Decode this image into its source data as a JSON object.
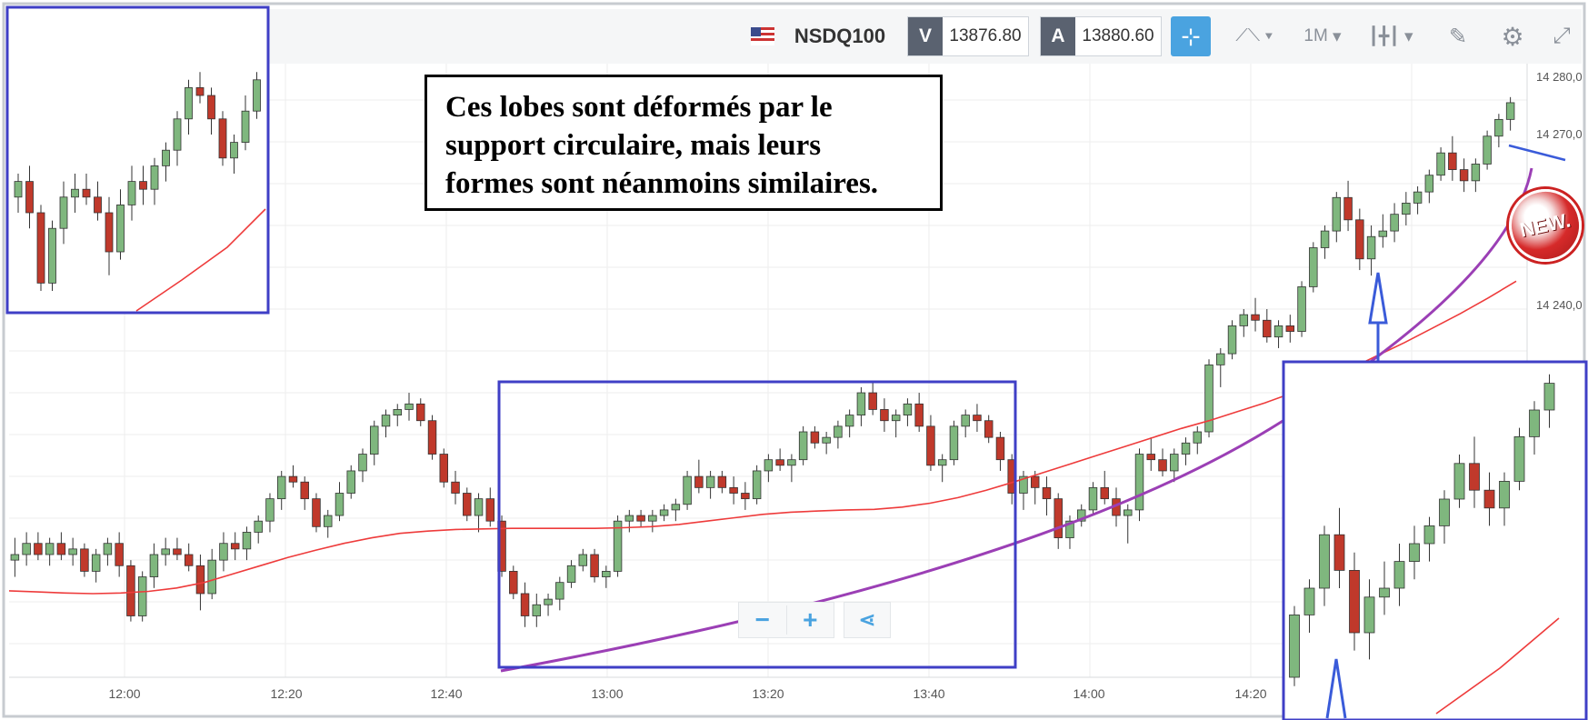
{
  "toolbar": {
    "symbol": "NSDQ100",
    "bid_label": "V",
    "bid_value": "13876.80",
    "ask_label": "A",
    "ask_value": "13880.60",
    "timeframe": "1M",
    "icons": [
      "crosshair-icon",
      "chart-type-icon",
      "candlestick-icon",
      "drawing-icon",
      "gear-icon",
      "fullscreen-icon"
    ]
  },
  "annotation": {
    "line1": "Ces lobes sont déformés par le",
    "line2": "support circulaire, mais leurs",
    "line3": "formes sont néanmoins similaires."
  },
  "badge_text": "NEW.",
  "zoom": {
    "minus": "−",
    "plus": "+"
  },
  "colors": {
    "bull": "#7fb77e",
    "bear": "#c0392b",
    "ma": "#ee3b3b",
    "curve": "#9b3fb5",
    "frame": "#3f3fc6",
    "accent": "#4aa3e0"
  },
  "chart_data": {
    "type": "candlestick",
    "instrument": "NSDQ100",
    "interval": "1M",
    "ylim": [
      14175,
      14285
    ],
    "yticks": [
      "14 280,0",
      "14 270,0",
      "14 240,0"
    ],
    "xticks": [
      "12:00",
      "12:20",
      "12:40",
      "13:00",
      "13:20",
      "13:40",
      "14:00",
      "14:20"
    ],
    "candles": [
      [
        14196,
        14200,
        14193,
        14197
      ],
      [
        14197,
        14201,
        14195,
        14199
      ],
      [
        14199,
        14201,
        14196,
        14197
      ],
      [
        14197,
        14200,
        14195,
        14199
      ],
      [
        14199,
        14201,
        14196,
        14197
      ],
      [
        14197,
        14200,
        14195,
        14198
      ],
      [
        14198,
        14199,
        14193,
        14194
      ],
      [
        14194,
        14198,
        14192,
        14197
      ],
      [
        14197,
        14200,
        14195,
        14199
      ],
      [
        14199,
        14201,
        14193,
        14195
      ],
      [
        14195,
        14196,
        14185,
        14186
      ],
      [
        14186,
        14194,
        14185,
        14193
      ],
      [
        14193,
        14199,
        14191,
        14197
      ],
      [
        14197,
        14200,
        14195,
        14198
      ],
      [
        14198,
        14200,
        14196,
        14197
      ],
      [
        14197,
        14199,
        14194,
        14195
      ],
      [
        14195,
        14197,
        14187,
        14190
      ],
      [
        14190,
        14198,
        14189,
        14196
      ],
      [
        14196,
        14201,
        14194,
        14199
      ],
      [
        14199,
        14201,
        14196,
        14198
      ],
      [
        14198,
        14202,
        14196,
        14201
      ],
      [
        14201,
        14204,
        14199,
        14203
      ],
      [
        14203,
        14208,
        14201,
        14207
      ],
      [
        14207,
        14212,
        14205,
        14211
      ],
      [
        14211,
        14213,
        14209,
        14210
      ],
      [
        14210,
        14211,
        14205,
        14207
      ],
      [
        14207,
        14208,
        14201,
        14202
      ],
      [
        14202,
        14205,
        14200,
        14204
      ],
      [
        14204,
        14210,
        14203,
        14208
      ],
      [
        14208,
        14213,
        14207,
        14212
      ],
      [
        14212,
        14216,
        14210,
        14215
      ],
      [
        14215,
        14221,
        14213,
        14220
      ],
      [
        14220,
        14223,
        14218,
        14222
      ],
      [
        14222,
        14224,
        14220,
        14223
      ],
      [
        14223,
        14226,
        14221,
        14224
      ],
      [
        14224,
        14225,
        14220,
        14221
      ],
      [
        14221,
        14222,
        14214,
        14215
      ],
      [
        14215,
        14216,
        14209,
        14210
      ],
      [
        14210,
        14212,
        14206,
        14208
      ],
      [
        14208,
        14209,
        14203,
        14204
      ],
      [
        14204,
        14208,
        14201,
        14207
      ],
      [
        14207,
        14209,
        14202,
        14203
      ],
      [
        14203,
        14204,
        14193,
        14194
      ],
      [
        14194,
        14195,
        14189,
        14190
      ],
      [
        14190,
        14192,
        14184,
        14186
      ],
      [
        14186,
        14190,
        14184,
        14188
      ],
      [
        14188,
        14190,
        14186,
        14189
      ],
      [
        14189,
        14193,
        14187,
        14192
      ],
      [
        14192,
        14196,
        14191,
        14195
      ],
      [
        14195,
        14198,
        14194,
        14197
      ],
      [
        14197,
        14198,
        14192,
        14193
      ],
      [
        14193,
        14195,
        14191,
        14194
      ],
      [
        14194,
        14204,
        14193,
        14203
      ],
      [
        14203,
        14205,
        14201,
        14204
      ],
      [
        14204,
        14205,
        14202,
        14203
      ],
      [
        14203,
        14205,
        14201,
        14204
      ],
      [
        14204,
        14206,
        14203,
        14205
      ],
      [
        14205,
        14207,
        14203,
        14206
      ],
      [
        14206,
        14212,
        14205,
        14211
      ],
      [
        14211,
        14214,
        14208,
        14209
      ],
      [
        14209,
        14212,
        14207,
        14211
      ],
      [
        14211,
        14212,
        14208,
        14209
      ],
      [
        14209,
        14211,
        14206,
        14208
      ],
      [
        14208,
        14210,
        14205,
        14207
      ],
      [
        14207,
        14213,
        14206,
        14212
      ],
      [
        14212,
        14215,
        14210,
        14214
      ],
      [
        14214,
        14216,
        14212,
        14213
      ],
      [
        14213,
        14215,
        14210,
        14214
      ],
      [
        14214,
        14220,
        14213,
        14219
      ],
      [
        14219,
        14220,
        14216,
        14217
      ],
      [
        14217,
        14219,
        14215,
        14218
      ],
      [
        14218,
        14221,
        14216,
        14220
      ],
      [
        14220,
        14223,
        14218,
        14222
      ],
      [
        14222,
        14227,
        14220,
        14226
      ],
      [
        14226,
        14228,
        14222,
        14223
      ],
      [
        14223,
        14225,
        14219,
        14221
      ],
      [
        14221,
        14223,
        14218,
        14222
      ],
      [
        14222,
        14225,
        14220,
        14224
      ],
      [
        14224,
        14226,
        14219,
        14220
      ],
      [
        14220,
        14222,
        14212,
        14213
      ],
      [
        14213,
        14215,
        14210,
        14214
      ],
      [
        14214,
        14221,
        14213,
        14220
      ],
      [
        14220,
        14223,
        14218,
        14222
      ],
      [
        14222,
        14224,
        14219,
        14221
      ],
      [
        14221,
        14222,
        14217,
        14218
      ],
      [
        14218,
        14219,
        14212,
        14214
      ],
      [
        14214,
        14215,
        14206,
        14208
      ],
      [
        14208,
        14212,
        14205,
        14211
      ],
      [
        14211,
        14212,
        14206,
        14209
      ],
      [
        14209,
        14211,
        14204,
        14207
      ],
      [
        14207,
        14208,
        14198,
        14200
      ],
      [
        14200,
        14204,
        14198,
        14203
      ],
      [
        14203,
        14206,
        14202,
        14205
      ],
      [
        14205,
        14210,
        14204,
        14209
      ],
      [
        14209,
        14212,
        14206,
        14207
      ],
      [
        14207,
        14209,
        14202,
        14204
      ],
      [
        14204,
        14206,
        14199,
        14205
      ],
      [
        14205,
        14216,
        14203,
        14215
      ],
      [
        14215,
        14218,
        14212,
        14214
      ],
      [
        14214,
        14216,
        14211,
        14212
      ],
      [
        14212,
        14216,
        14210,
        14215
      ],
      [
        14215,
        14218,
        14213,
        14217
      ],
      [
        14217,
        14220,
        14215,
        14219
      ],
      [
        14219,
        14232,
        14218,
        14231
      ],
      [
        14231,
        14234,
        14227,
        14233
      ],
      [
        14233,
        14239,
        14232,
        14238
      ],
      [
        14238,
        14241,
        14236,
        14240
      ],
      [
        14240,
        14243,
        14237,
        14239
      ],
      [
        14239,
        14241,
        14235,
        14236
      ],
      [
        14236,
        14239,
        14234,
        14238
      ],
      [
        14238,
        14240,
        14235,
        14237
      ],
      [
        14237,
        14246,
        14236,
        14245
      ],
      [
        14245,
        14253,
        14244,
        14252
      ],
      [
        14252,
        14256,
        14250,
        14255
      ],
      [
        14255,
        14262,
        14253,
        14261
      ],
      [
        14261,
        14264,
        14255,
        14257
      ],
      [
        14257,
        14259,
        14248,
        14250
      ],
      [
        14250,
        14256,
        14247,
        14254
      ],
      [
        14254,
        14258,
        14252,
        14255
      ],
      [
        14255,
        14260,
        14253,
        14258
      ],
      [
        14258,
        14262,
        14256,
        14260
      ],
      [
        14260,
        14263,
        14258,
        14262
      ],
      [
        14262,
        14266,
        14260,
        14265
      ],
      [
        14265,
        14270,
        14264,
        14269
      ],
      [
        14269,
        14272,
        14264,
        14266
      ],
      [
        14266,
        14268,
        14262,
        14264
      ],
      [
        14264,
        14268,
        14262,
        14267
      ],
      [
        14267,
        14273,
        14266,
        14272
      ],
      [
        14272,
        14276,
        14270,
        14275
      ],
      [
        14275,
        14279,
        14273,
        14278
      ]
    ],
    "moving_average": [
      14190.5,
      14190.3,
      14190.1,
      14190.0,
      14190.1,
      14190.4,
      14191.0,
      14192.0,
      14193.5,
      14195.0,
      14196.5,
      14197.8,
      14199.0,
      14200.0,
      14200.8,
      14201.2,
      14201.5,
      14201.6,
      14201.7,
      14201.7,
      14201.7,
      14201.7,
      14201.8,
      14202.0,
      14202.4,
      14203.0,
      14203.6,
      14204.2,
      14204.6,
      14204.8,
      14205.0,
      14205.1,
      14205.5,
      14206.2,
      14207.2,
      14208.5,
      14210.0,
      14211.6,
      14213.2,
      14214.8,
      14216.4,
      14218.0,
      14219.6,
      14221.0,
      14222.6,
      14224.2,
      14226.0,
      14228.0,
      14230.2,
      14232.6,
      14235.0,
      14237.6,
      14240.2,
      14243.0,
      14246.0
    ],
    "annotations": [
      "Ces lobes sont déformés par le support circulaire, mais leurs formes sont néanmoins similaires."
    ]
  }
}
